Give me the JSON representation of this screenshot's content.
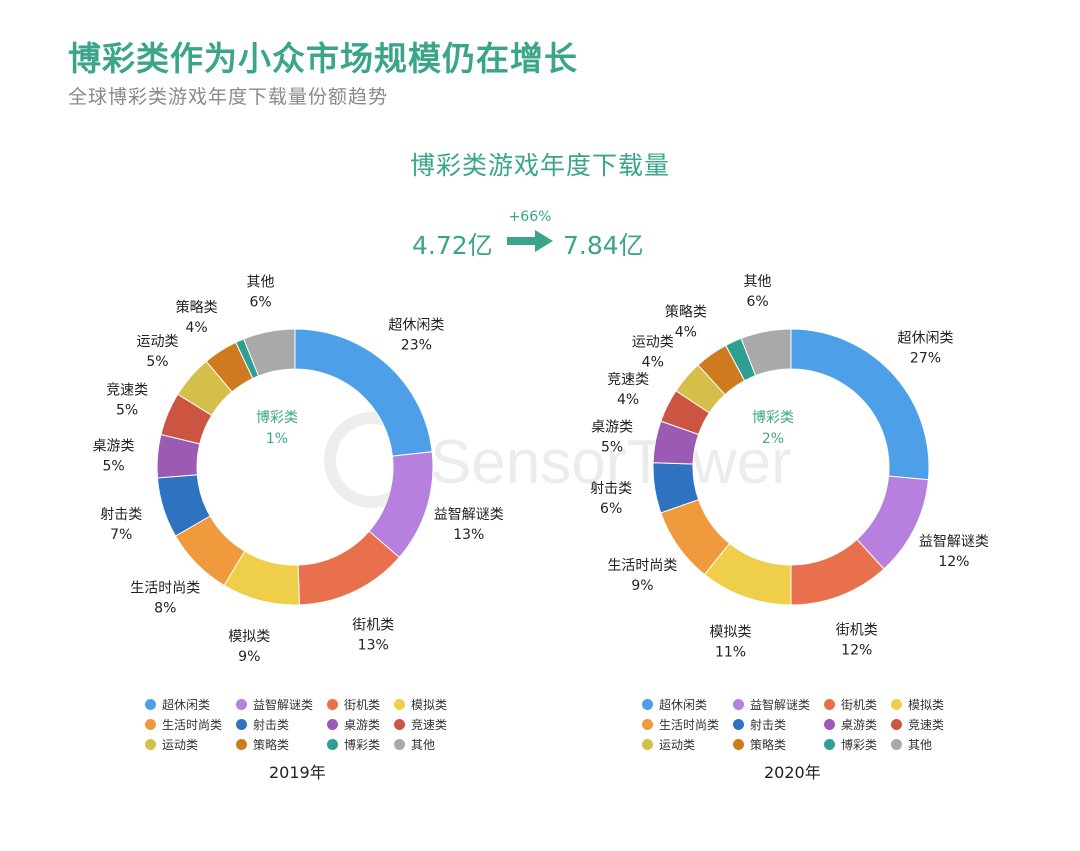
{
  "header": {
    "title": "博彩类作为小众市场规模仍在增长",
    "subtitle": "全球博彩类游戏年度下载量份额趋势"
  },
  "summary": {
    "heading": "博彩类游戏年度下载量",
    "value_2019": "4.72亿",
    "value_2020": "7.84亿",
    "growth": "+66%"
  },
  "watermark": "SensorTower",
  "colors": {
    "accent": "#3aa58a",
    "超休闲类": "#4d9fe8",
    "益智解谜类": "#b77fde",
    "街机类": "#e8704d",
    "模拟类": "#efcf4a",
    "生活时尚类": "#ee9a3d",
    "射击类": "#2f72bf",
    "桌游类": "#9b5ab3",
    "竞速类": "#cc5542",
    "运动类": "#d5bf4a",
    "策略类": "#cf7a1f",
    "博彩类": "#2f9f92",
    "其他": "#a9a9a9"
  },
  "chart_data": [
    {
      "type": "pie",
      "year_label": "2019年",
      "center_label": "博彩类",
      "center_value": "1%",
      "categories": [
        "超休闲类",
        "益智解谜类",
        "街机类",
        "模拟类",
        "生活时尚类",
        "射击类",
        "桌游类",
        "竞速类",
        "运动类",
        "策略类",
        "博彩类",
        "其他"
      ],
      "values": [
        23,
        13,
        13,
        9,
        8,
        7,
        5,
        5,
        5,
        4,
        1,
        6
      ],
      "value_labels": [
        "23%",
        "13%",
        "13%",
        "9%",
        "8%",
        "7%",
        "5%",
        "5%",
        "5%",
        "4%",
        "1%",
        "6%"
      ]
    },
    {
      "type": "pie",
      "year_label": "2020年",
      "center_label": "博彩类",
      "center_value": "2%",
      "categories": [
        "超休闲类",
        "益智解谜类",
        "街机类",
        "模拟类",
        "生活时尚类",
        "射击类",
        "桌游类",
        "竞速类",
        "运动类",
        "策略类",
        "博彩类",
        "其他"
      ],
      "values": [
        27,
        12,
        12,
        11,
        9,
        6,
        5,
        4,
        4,
        4,
        2,
        6
      ],
      "value_labels": [
        "27%",
        "12%",
        "12%",
        "11%",
        "9%",
        "6%",
        "5%",
        "4%",
        "4%",
        "4%",
        "2%",
        "6%"
      ]
    }
  ]
}
